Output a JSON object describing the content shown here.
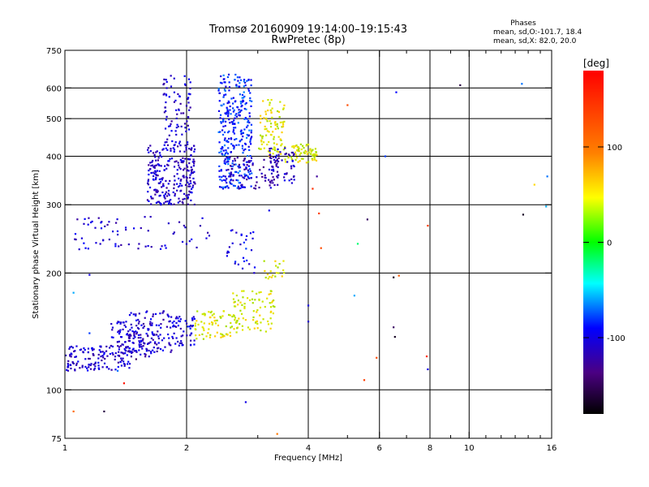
{
  "chart_data": {
    "type": "scatter",
    "title": "Tromsø 20160909 19:14:00–19:15:43",
    "subtitle": "RwPretec (8p)",
    "stats": {
      "heading": "Phases",
      "line1": "mean, sd,O:-101.7, 18.4",
      "line2": "mean, sd,X:  82.0, 20.0"
    },
    "xlabel": "Frequency [MHz]",
    "ylabel": "Stationary phase Virtual Height [km]",
    "xscale": "log",
    "yscale": "log",
    "xlim": [
      1,
      16
    ],
    "ylim": [
      75,
      750
    ],
    "grid": true,
    "x_ticks": [
      1,
      2,
      4,
      6,
      8,
      10,
      16
    ],
    "x_minor_ticks": [
      3,
      5,
      7,
      9,
      11,
      12,
      13,
      14,
      15
    ],
    "x_gridlines": [
      2,
      4,
      6,
      8,
      10
    ],
    "y_ticks": [
      75,
      100,
      200,
      300,
      400,
      500,
      600,
      750
    ],
    "y_gridlines": [
      100,
      200,
      300,
      400,
      500,
      600
    ],
    "colorbar": {
      "label": "[deg]",
      "range": [
        -180,
        180
      ],
      "ticks": [
        100,
        0,
        -100
      ],
      "colormap": "rainbow (black-purple-blue-cyan-green-yellow-red)"
    },
    "series": [
      {
        "x_range": [
          1.0,
          1.45
        ],
        "y_range": [
          112,
          130
        ],
        "phase": -110,
        "n": 140
      },
      {
        "x_range": [
          1.3,
          1.7
        ],
        "y_range": [
          120,
          150
        ],
        "phase": -112,
        "n": 90
      },
      {
        "x_range": [
          1.4,
          1.85
        ],
        "y_range": [
          125,
          160
        ],
        "phase": -108,
        "n": 110
      },
      {
        "x_range": [
          1.8,
          2.1
        ],
        "y_range": [
          130,
          155
        ],
        "phase": -105,
        "n": 60
      },
      {
        "x_range": [
          2.1,
          2.6
        ],
        "y_range": [
          135,
          160
        ],
        "phase": 82,
        "n": 70
      },
      {
        "x_range": [
          2.6,
          3.3
        ],
        "y_range": [
          140,
          180
        ],
        "phase": 85,
        "n": 90
      },
      {
        "x_range": [
          3.1,
          3.5
        ],
        "y_range": [
          190,
          215
        ],
        "phase": 80,
        "n": 20
      },
      {
        "x_range": [
          1.05,
          2.3
        ],
        "y_range": [
          230,
          280
        ],
        "phase": -108,
        "n": 70
      },
      {
        "x_range": [
          2.5,
          2.95
        ],
        "y_range": [
          200,
          260
        ],
        "phase": -98,
        "n": 30
      },
      {
        "x_range": [
          1.6,
          2.1
        ],
        "y_range": [
          300,
          430
        ],
        "phase": -112,
        "n": 260
      },
      {
        "x_range": [
          1.75,
          2.05
        ],
        "y_range": [
          430,
          650
        ],
        "phase": -110,
        "n": 80
      },
      {
        "x_range": [
          2.4,
          2.9
        ],
        "y_range": [
          330,
          650
        ],
        "phase": -85,
        "n": 320
      },
      {
        "x_range": [
          2.5,
          3.4
        ],
        "y_range": [
          330,
          400
        ],
        "phase": -120,
        "n": 80
      },
      {
        "x_range": [
          3.0,
          3.5
        ],
        "y_range": [
          400,
          560
        ],
        "phase": 82,
        "n": 90
      },
      {
        "x_range": [
          3.5,
          4.2
        ],
        "y_range": [
          385,
          430
        ],
        "phase": 85,
        "n": 70
      },
      {
        "x_range": [
          3.2,
          3.7
        ],
        "y_range": [
          340,
          420
        ],
        "phase": -115,
        "n": 60
      }
    ],
    "scattered_points": [
      {
        "x": 1.25,
        "y": 88,
        "phase": -160
      },
      {
        "x": 1.05,
        "y": 88,
        "phase": 110
      },
      {
        "x": 2.8,
        "y": 93,
        "phase": -100
      },
      {
        "x": 3.35,
        "y": 77,
        "phase": 100
      },
      {
        "x": 6.6,
        "y": 585,
        "phase": -90
      },
      {
        "x": 9.5,
        "y": 610,
        "phase": -160
      },
      {
        "x": 13.5,
        "y": 615,
        "phase": -70
      },
      {
        "x": 6.2,
        "y": 400,
        "phase": -80
      },
      {
        "x": 15.6,
        "y": 355,
        "phase": -70
      },
      {
        "x": 14.5,
        "y": 338,
        "phase": 60
      },
      {
        "x": 15.5,
        "y": 297,
        "phase": -60
      },
      {
        "x": 13.6,
        "y": 283,
        "phase": -170
      },
      {
        "x": 5.0,
        "y": 542,
        "phase": 130
      },
      {
        "x": 4.25,
        "y": 285,
        "phase": 140
      },
      {
        "x": 4.3,
        "y": 232,
        "phase": 130
      },
      {
        "x": 5.6,
        "y": 275,
        "phase": -150
      },
      {
        "x": 5.3,
        "y": 238,
        "phase": -20
      },
      {
        "x": 4.1,
        "y": 330,
        "phase": 150
      },
      {
        "x": 6.5,
        "y": 195,
        "phase": -170
      },
      {
        "x": 6.7,
        "y": 197,
        "phase": 120
      },
      {
        "x": 5.2,
        "y": 175,
        "phase": -60
      },
      {
        "x": 6.5,
        "y": 145,
        "phase": -150
      },
      {
        "x": 6.55,
        "y": 137,
        "phase": -170
      },
      {
        "x": 5.9,
        "y": 121,
        "phase": 130
      },
      {
        "x": 5.5,
        "y": 106,
        "phase": 140
      },
      {
        "x": 7.85,
        "y": 122,
        "phase": 150
      },
      {
        "x": 7.9,
        "y": 113,
        "phase": -100
      },
      {
        "x": 7.9,
        "y": 265,
        "phase": 140
      },
      {
        "x": 4.0,
        "y": 165,
        "phase": -100
      },
      {
        "x": 4.0,
        "y": 150,
        "phase": -110
      },
      {
        "x": 1.15,
        "y": 198,
        "phase": -100
      },
      {
        "x": 1.05,
        "y": 178,
        "phase": -60
      },
      {
        "x": 1.15,
        "y": 140,
        "phase": -80
      },
      {
        "x": 1.4,
        "y": 104,
        "phase": 170
      },
      {
        "x": 1.35,
        "y": 112,
        "phase": -70
      },
      {
        "x": 3.2,
        "y": 290,
        "phase": -100
      },
      {
        "x": 2.5,
        "y": 605,
        "phase": -110
      },
      {
        "x": 4.2,
        "y": 355,
        "phase": -130
      },
      {
        "x": 1.5,
        "y": 120,
        "phase": -150
      }
    ]
  }
}
